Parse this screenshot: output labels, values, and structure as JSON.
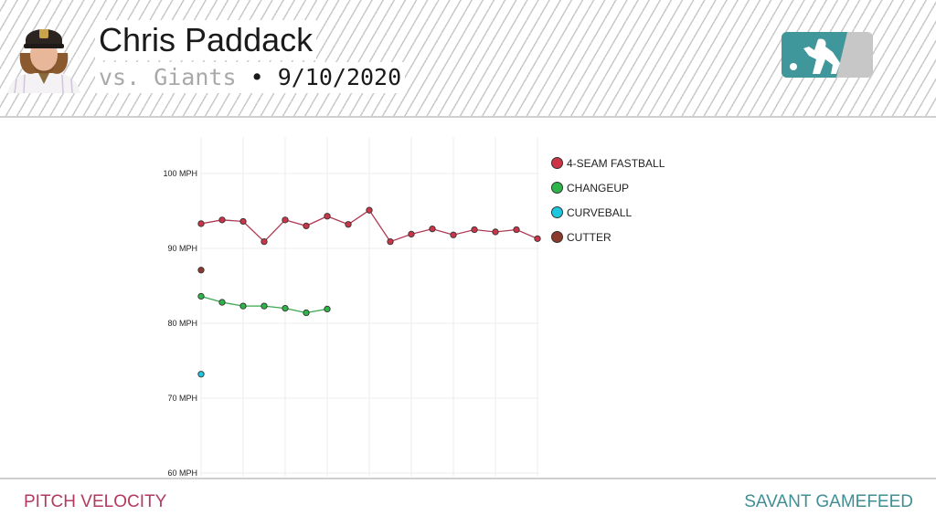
{
  "header": {
    "player_name": "Chris Paddack",
    "opponent": "vs. Giants",
    "separator": "•",
    "date": "9/10/2020"
  },
  "logo": {
    "name": "mlb-logo",
    "colors": {
      "left": "#3f969b",
      "right": "#c7c7c7"
    }
  },
  "footer": {
    "left_label": "PITCH VELOCITY",
    "right_label": "SAVANT GAMEFEED"
  },
  "colors": {
    "fourseam": "#cc3548",
    "changeup": "#2db54a",
    "curveball": "#1ec7e0",
    "cutter": "#8b3a2b",
    "fourseam_line": "#b03a55",
    "changeup_line": "#3aa84d"
  },
  "chart_data": {
    "type": "line",
    "ylim": [
      60,
      105
    ],
    "y_ticks": [
      {
        "value": 100,
        "label": "100 MPH"
      },
      {
        "value": 90,
        "label": "90 MPH"
      },
      {
        "value": 80,
        "label": "80 MPH"
      },
      {
        "value": 70,
        "label": "70 MPH"
      },
      {
        "value": 60,
        "label": "60 MPH"
      }
    ],
    "x_count": 17,
    "grid": true,
    "legend_position": "right",
    "series": [
      {
        "key": "fourseam",
        "name": "4-SEAM FASTBALL",
        "color": "#cc3548",
        "connected": true,
        "x": [
          1,
          2,
          3,
          4,
          5,
          6,
          7,
          8,
          9,
          10,
          11,
          12,
          13,
          14,
          15,
          16,
          17
        ],
        "values": [
          93.3,
          93.8,
          93.6,
          90.9,
          93.8,
          93.0,
          94.3,
          93.2,
          95.1,
          90.9,
          91.9,
          92.6,
          91.8,
          92.5,
          92.2,
          92.5,
          91.3
        ]
      },
      {
        "key": "changeup",
        "name": "CHANGEUP",
        "color": "#2db54a",
        "connected": true,
        "x": [
          1,
          2,
          3,
          4,
          5,
          6,
          7
        ],
        "values": [
          83.6,
          82.8,
          82.3,
          82.3,
          82.0,
          81.4,
          81.9
        ]
      },
      {
        "key": "curveball",
        "name": "CURVEBALL",
        "color": "#1ec7e0",
        "connected": false,
        "x": [
          1
        ],
        "values": [
          73.2
        ]
      },
      {
        "key": "cutter",
        "name": "CUTTER",
        "color": "#8b3a2b",
        "connected": false,
        "x": [
          1
        ],
        "values": [
          87.1
        ]
      }
    ]
  }
}
